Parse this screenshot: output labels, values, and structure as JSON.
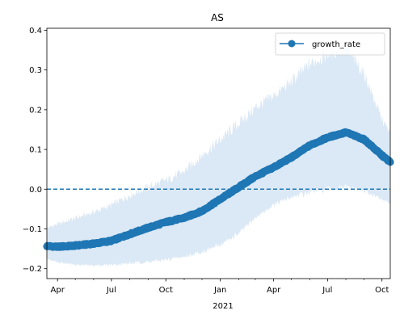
{
  "chart_data": {
    "type": "line",
    "title": "AS",
    "xlabel": "",
    "ylabel": "",
    "x_start": "2020-03-14",
    "x_end": "2021-10-15",
    "ylim": [
      -0.225,
      0.405
    ],
    "y_ticks": [
      -0.2,
      -0.1,
      0.0,
      0.1,
      0.2,
      0.3,
      0.4
    ],
    "y_tick_labels": [
      "−0.2",
      "−0.1",
      "0.0",
      "0.1",
      "0.2",
      "0.3",
      "0.4"
    ],
    "x_tick_major": [
      {
        "date": "2020-04-01",
        "label": "Apr"
      },
      {
        "date": "2020-07-01",
        "label": "Jul"
      },
      {
        "date": "2020-10-01",
        "label": "Oct"
      },
      {
        "date": "2021-01-01",
        "label": "Jan"
      },
      {
        "date": "2021-04-01",
        "label": "Apr"
      },
      {
        "date": "2021-07-01",
        "label": "Jul"
      },
      {
        "date": "2021-10-01",
        "label": "Oct"
      }
    ],
    "x_tick_minor": [
      "2020-05-01",
      "2020-06-01",
      "2020-08-01",
      "2020-09-01",
      "2020-11-01",
      "2020-12-01",
      "2021-02-01",
      "2021-03-01",
      "2021-05-01",
      "2021-06-01",
      "2021-08-01",
      "2021-09-01"
    ],
    "year_label": "2021",
    "reference_line": {
      "y": 0.0,
      "style": "dashed"
    },
    "legend": {
      "placement": "top-right",
      "entries": [
        "growth_rate"
      ]
    },
    "grid": false,
    "series": [
      {
        "name": "growth_rate",
        "color": "#1f77b4",
        "band_color": "#dbe8f5",
        "points": [
          {
            "x": "2020-03-14",
            "y": -0.143,
            "lower": -0.175,
            "upper": -0.098
          },
          {
            "x": "2020-04-01",
            "y": -0.145,
            "lower": -0.183,
            "upper": -0.088
          },
          {
            "x": "2020-05-01",
            "y": -0.142,
            "lower": -0.19,
            "upper": -0.073
          },
          {
            "x": "2020-06-01",
            "y": -0.137,
            "lower": -0.192,
            "upper": -0.058
          },
          {
            "x": "2020-07-01",
            "y": -0.13,
            "lower": -0.19,
            "upper": -0.04
          },
          {
            "x": "2020-08-01",
            "y": -0.113,
            "lower": -0.187,
            "upper": -0.015
          },
          {
            "x": "2020-09-01",
            "y": -0.097,
            "lower": -0.183,
            "upper": 0.005
          },
          {
            "x": "2020-10-01",
            "y": -0.083,
            "lower": -0.178,
            "upper": 0.022
          },
          {
            "x": "2020-11-01",
            "y": -0.072,
            "lower": -0.17,
            "upper": 0.045
          },
          {
            "x": "2020-12-01",
            "y": -0.055,
            "lower": -0.158,
            "upper": 0.085
          },
          {
            "x": "2021-01-01",
            "y": -0.025,
            "lower": -0.14,
            "upper": 0.125
          },
          {
            "x": "2021-02-01",
            "y": 0.005,
            "lower": -0.112,
            "upper": 0.165
          },
          {
            "x": "2021-03-01",
            "y": 0.032,
            "lower": -0.072,
            "upper": 0.205
          },
          {
            "x": "2021-04-01",
            "y": 0.055,
            "lower": -0.04,
            "upper": 0.235
          },
          {
            "x": "2021-05-01",
            "y": 0.08,
            "lower": -0.02,
            "upper": 0.27
          },
          {
            "x": "2021-06-01",
            "y": 0.11,
            "lower": -0.008,
            "upper": 0.315
          },
          {
            "x": "2021-07-01",
            "y": 0.13,
            "lower": 0.0,
            "upper": 0.34
          },
          {
            "x": "2021-08-01",
            "y": 0.143,
            "lower": 0.005,
            "upper": 0.355
          },
          {
            "x": "2021-09-01",
            "y": 0.125,
            "lower": -0.005,
            "upper": 0.29
          },
          {
            "x": "2021-10-01",
            "y": 0.085,
            "lower": -0.025,
            "upper": 0.175
          },
          {
            "x": "2021-10-15",
            "y": 0.068,
            "lower": -0.035,
            "upper": 0.14
          }
        ]
      }
    ]
  }
}
